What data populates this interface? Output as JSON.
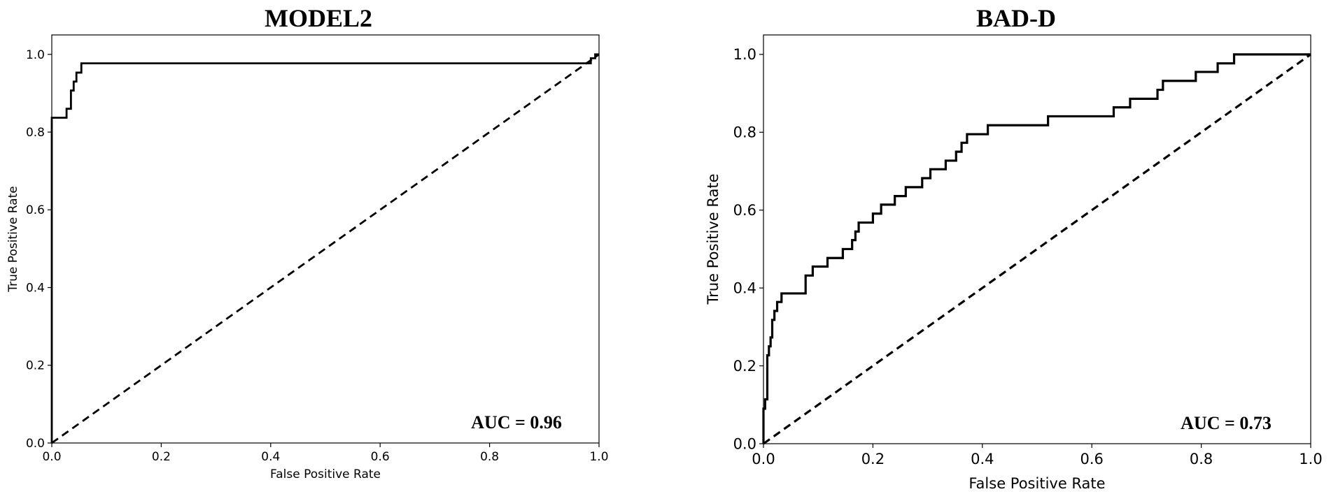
{
  "chart_data": [
    {
      "type": "line",
      "title": "MODEL2",
      "xlabel": "False Positive Rate",
      "ylabel": "True Positive Rate",
      "xlim": [
        0.0,
        1.0
      ],
      "ylim": [
        0.0,
        1.05
      ],
      "xticks": [
        "0.0",
        "0.2",
        "0.4",
        "0.6",
        "0.8",
        "1.0"
      ],
      "yticks": [
        "0.0",
        "0.2",
        "0.4",
        "0.6",
        "0.8",
        "1.0"
      ],
      "grid": false,
      "annotation": "AUC = 0.96",
      "series": [
        {
          "style": "solid",
          "x": [
            0.0,
            0.0,
            0.027,
            0.027,
            0.035,
            0.035,
            0.04,
            0.04,
            0.045,
            0.045,
            0.054,
            0.054,
            0.985,
            0.985,
            0.993,
            0.993,
            1.0
          ],
          "y": [
            0.0,
            0.837,
            0.837,
            0.86,
            0.86,
            0.907,
            0.907,
            0.93,
            0.93,
            0.953,
            0.953,
            0.977,
            0.977,
            0.99,
            0.99,
            1.0,
            1.0
          ]
        },
        {
          "style": "dashed",
          "x": [
            0.0,
            1.0
          ],
          "y": [
            0.0,
            1.0
          ]
        }
      ]
    },
    {
      "type": "line",
      "title": "BAD-D",
      "xlabel": "False Positive Rate",
      "ylabel": "True Positive Rate",
      "xlim": [
        0.0,
        1.0
      ],
      "ylim": [
        0.0,
        1.05
      ],
      "xticks": [
        "0.0",
        "0.2",
        "0.4",
        "0.6",
        "0.8",
        "1.0"
      ],
      "yticks": [
        "0.0",
        "0.2",
        "0.4",
        "0.6",
        "0.8",
        "1.0"
      ],
      "grid": false,
      "annotation": "AUC = 0.73",
      "series": [
        {
          "style": "solid",
          "x": [
            0.0,
            0.0,
            0.003,
            0.003,
            0.007,
            0.007,
            0.01,
            0.01,
            0.013,
            0.013,
            0.016,
            0.016,
            0.02,
            0.02,
            0.025,
            0.025,
            0.033,
            0.033,
            0.077,
            0.077,
            0.09,
            0.09,
            0.117,
            0.117,
            0.145,
            0.145,
            0.162,
            0.162,
            0.168,
            0.168,
            0.174,
            0.174,
            0.2,
            0.2,
            0.215,
            0.215,
            0.24,
            0.24,
            0.26,
            0.26,
            0.29,
            0.29,
            0.305,
            0.305,
            0.333,
            0.333,
            0.352,
            0.352,
            0.362,
            0.362,
            0.372,
            0.372,
            0.41,
            0.41,
            0.52,
            0.52,
            0.64,
            0.64,
            0.67,
            0.67,
            0.72,
            0.72,
            0.73,
            0.73,
            0.79,
            0.79,
            0.83,
            0.83,
            0.86,
            0.86,
            0.91,
            0.91,
            0.93,
            0.93,
            0.95,
            0.95,
            0.97,
            0.97,
            1.0
          ],
          "y": [
            0.0,
            0.09,
            0.09,
            0.114,
            0.114,
            0.227,
            0.227,
            0.25,
            0.25,
            0.273,
            0.273,
            0.318,
            0.318,
            0.341,
            0.341,
            0.364,
            0.364,
            0.386,
            0.386,
            0.432,
            0.432,
            0.455,
            0.455,
            0.477,
            0.477,
            0.5,
            0.5,
            0.523,
            0.523,
            0.545,
            0.545,
            0.568,
            0.568,
            0.591,
            0.591,
            0.614,
            0.614,
            0.636,
            0.636,
            0.659,
            0.659,
            0.682,
            0.682,
            0.705,
            0.705,
            0.727,
            0.727,
            0.75,
            0.75,
            0.773,
            0.773,
            0.795,
            0.795,
            0.818,
            0.818,
            0.841,
            0.841,
            0.864,
            0.864,
            0.886,
            0.886,
            0.909,
            0.909,
            0.932,
            0.932,
            0.955,
            0.955,
            0.977,
            0.977,
            1.0,
            1.0,
            1.0,
            1.0,
            1.0,
            1.0,
            1.0,
            1.0,
            1.0,
            1.0
          ]
        },
        {
          "style": "dashed",
          "x": [
            0.0,
            1.0
          ],
          "y": [
            0.0,
            1.0
          ]
        }
      ]
    }
  ]
}
